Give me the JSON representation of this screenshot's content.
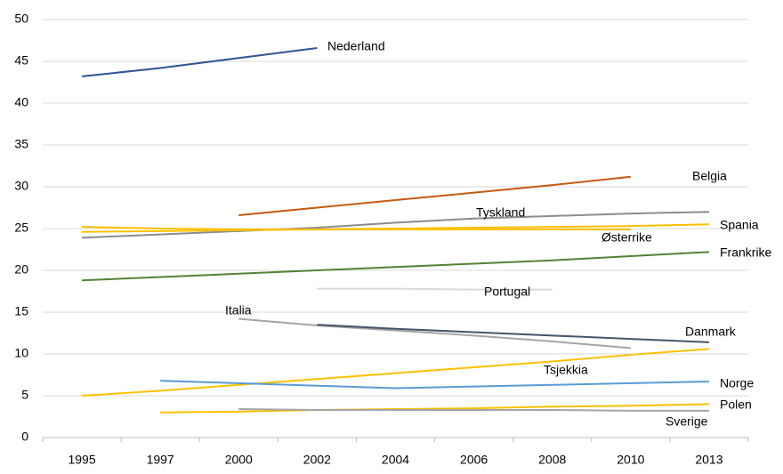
{
  "chart_data": {
    "type": "line",
    "categories": [
      "1995",
      "1997",
      "2000",
      "2002",
      "2004",
      "2006",
      "2008",
      "2010",
      "2013"
    ],
    "ylim": [
      0,
      50
    ],
    "yticks": [
      0,
      5,
      10,
      15,
      20,
      25,
      30,
      35,
      40,
      45,
      50
    ],
    "grid": true,
    "series": [
      {
        "name": "Nederland",
        "color": "#2f5597",
        "values": [
          43.2,
          44.2,
          45.4,
          46.6,
          null,
          null,
          null,
          null,
          null
        ]
      },
      {
        "name": "Belgia",
        "color": "#c55a11",
        "values": [
          null,
          null,
          26.6,
          27.5,
          28.4,
          29.3,
          30.2,
          31.2,
          null
        ]
      },
      {
        "name": "Tyskland",
        "color": "#8c8c8c",
        "values": [
          23.9,
          24.3,
          24.7,
          25.1,
          25.7,
          26.2,
          26.5,
          26.8,
          27.0
        ]
      },
      {
        "name": "Spania",
        "color": "#ffc000",
        "values": [
          24.6,
          24.7,
          24.8,
          24.9,
          25.0,
          25.1,
          25.2,
          25.3,
          25.5
        ]
      },
      {
        "name": "Østerrike",
        "color": "#ffc000",
        "values": [
          25.2,
          25.0,
          24.9,
          24.9,
          24.9,
          24.9,
          24.9,
          24.9,
          null
        ]
      },
      {
        "name": "Frankrike",
        "color": "#548235",
        "values": [
          18.8,
          19.2,
          19.6,
          20.0,
          20.4,
          20.8,
          21.2,
          21.7,
          22.2
        ]
      },
      {
        "name": "Portugal",
        "color": "#d9d9d9",
        "values": [
          null,
          null,
          null,
          17.8,
          17.8,
          17.7,
          17.7,
          null,
          null
        ]
      },
      {
        "name": "Italia",
        "color": "#a5a5a5",
        "values": [
          null,
          null,
          14.2,
          13.4,
          12.8,
          12.2,
          11.5,
          10.7,
          null
        ]
      },
      {
        "name": "Danmark",
        "color": "#44546a",
        "values": [
          null,
          null,
          null,
          13.5,
          13.0,
          12.6,
          12.2,
          11.8,
          11.4
        ]
      },
      {
        "name": "Tsjekkia",
        "color": "#ffc000",
        "values": [
          5.0,
          5.6,
          6.3,
          7.0,
          7.7,
          8.4,
          9.1,
          9.9,
          10.6
        ]
      },
      {
        "name": "Norge",
        "color": "#5b9bd5",
        "values": [
          null,
          6.8,
          6.5,
          6.2,
          5.9,
          6.1,
          6.3,
          6.5,
          6.7
        ]
      },
      {
        "name": "Polen",
        "color": "#ffc000",
        "values": [
          null,
          3.0,
          3.1,
          3.3,
          3.4,
          3.5,
          3.7,
          3.8,
          4.0
        ]
      },
      {
        "name": "Sverige",
        "color": "#a5a5a5",
        "values": [
          null,
          null,
          3.4,
          3.3,
          3.3,
          3.3,
          3.3,
          3.2,
          3.2
        ]
      }
    ]
  }
}
